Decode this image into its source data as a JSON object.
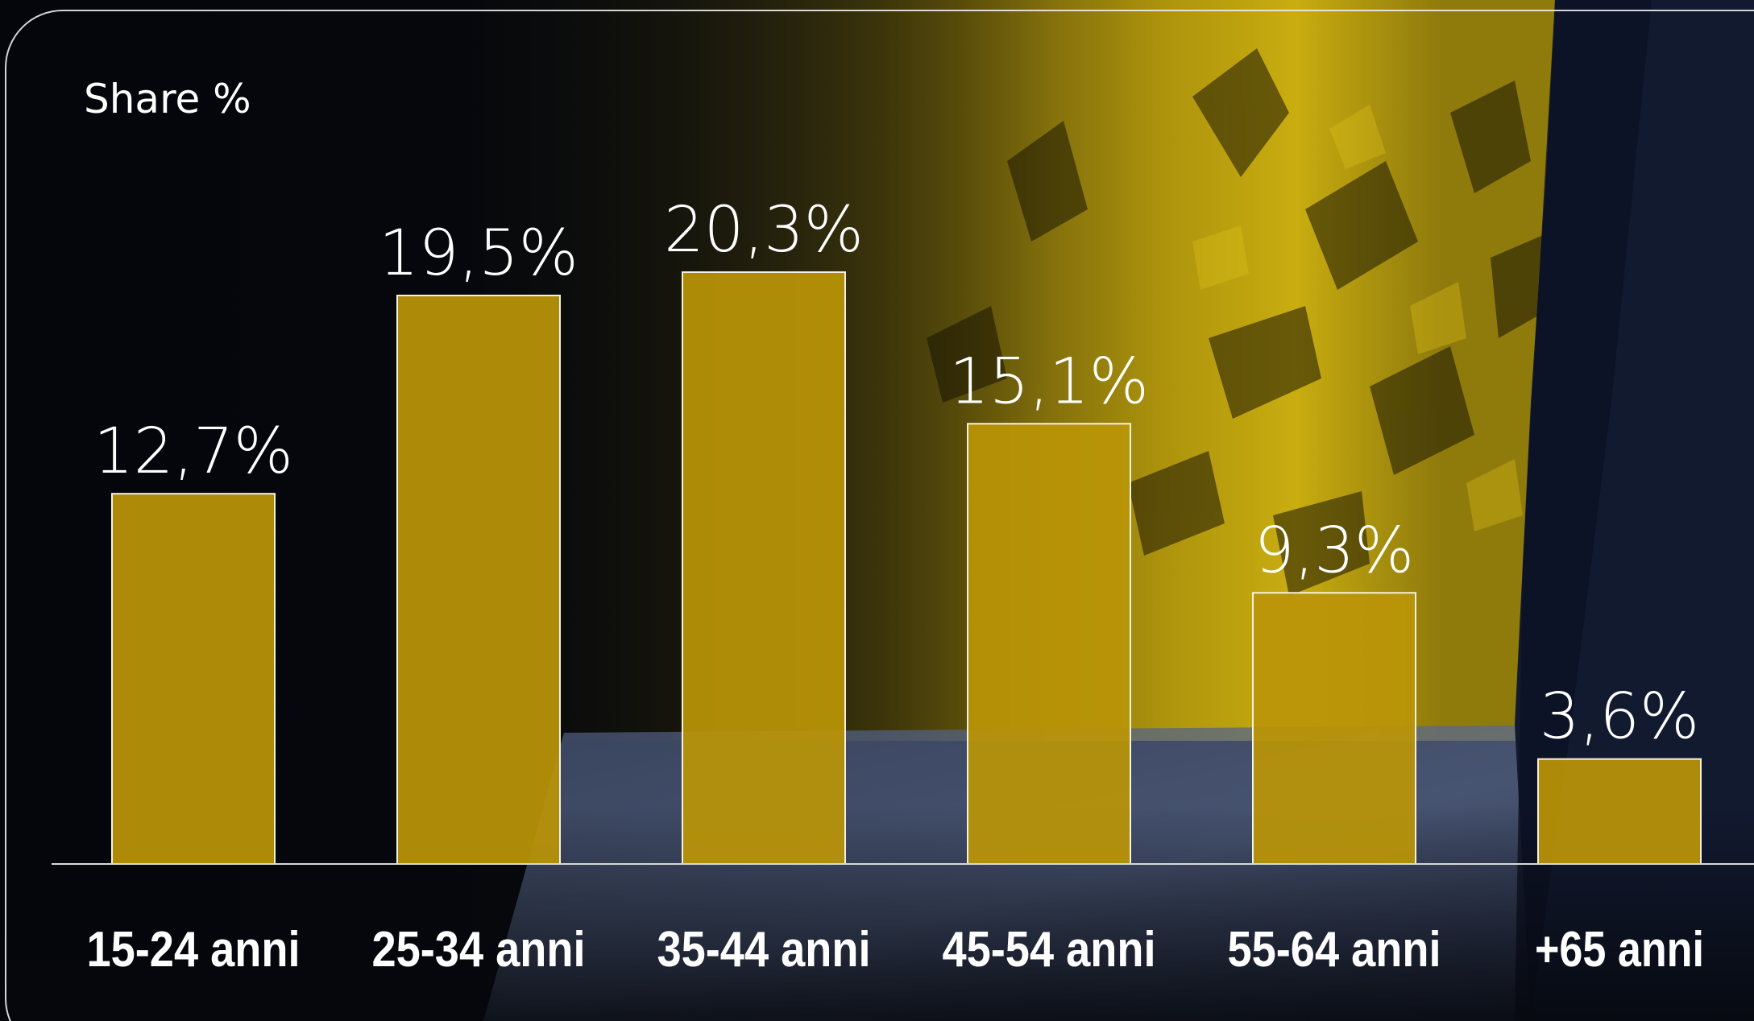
{
  "chart_data": {
    "type": "bar",
    "ylabel": "Share %",
    "categories": [
      "15-24 anni",
      "25-34 anni",
      "35-44 anni",
      "45-54 anni",
      "55-64 anni",
      "+65 anni"
    ],
    "values": [
      12.7,
      19.5,
      20.3,
      15.1,
      9.3,
      3.6
    ],
    "data_labels": [
      "12,7%",
      "19,5%",
      "20,3%",
      "15,1%",
      "9,3%",
      "3,6%"
    ],
    "ylim": [
      0,
      20.3
    ],
    "grid": false,
    "colors": {
      "bar": "#b89408",
      "bar_border": "#f4f1e4",
      "text": "#ffffff",
      "background_accent": "#c7a80a"
    }
  }
}
